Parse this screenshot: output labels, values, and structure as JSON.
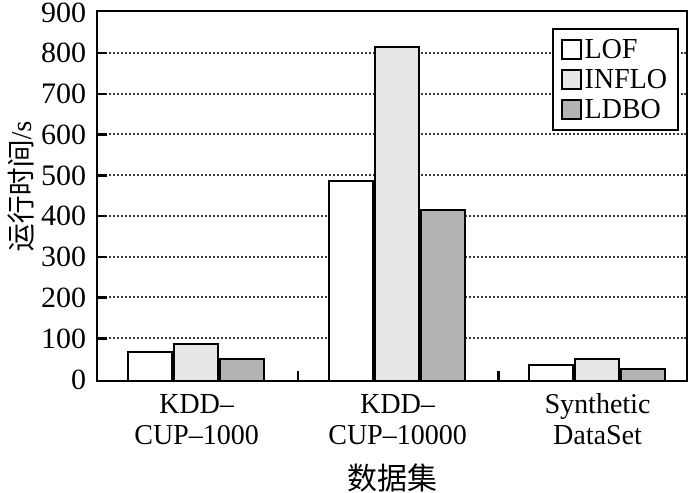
{
  "figure": {
    "background": "#ffffff",
    "text_color": "#000000"
  },
  "chart_data": {
    "type": "bar",
    "title": "",
    "xlabel": "数据集",
    "ylabel": "运行时间/s",
    "categories": [
      "KDD–CUP–1000",
      "KDD–CUP–10000",
      "Synthetic DataSet"
    ],
    "category_lines": [
      [
        "KDD–",
        "CUP–1000"
      ],
      [
        "KDD–",
        "CUP–10000"
      ],
      [
        "Synthetic",
        "DataSet"
      ]
    ],
    "series": [
      {
        "name": "LOF",
        "color": "#ffffff",
        "values": [
          70,
          490,
          40
        ]
      },
      {
        "name": "INFLO",
        "color": "#e6e6e6",
        "values": [
          90,
          820,
          55
        ]
      },
      {
        "name": "LDBO",
        "color": "#b3b3b3",
        "values": [
          55,
          420,
          30
        ]
      }
    ],
    "ylim": [
      0,
      900
    ],
    "yticks": [
      0,
      100,
      200,
      300,
      400,
      500,
      600,
      700,
      800,
      900
    ],
    "grid": "horizontal-dotted",
    "legend": {
      "position": "top-right",
      "entries": [
        "LOF",
        "INFLO",
        "LDBO"
      ]
    },
    "bar_border_color": "#000000"
  }
}
